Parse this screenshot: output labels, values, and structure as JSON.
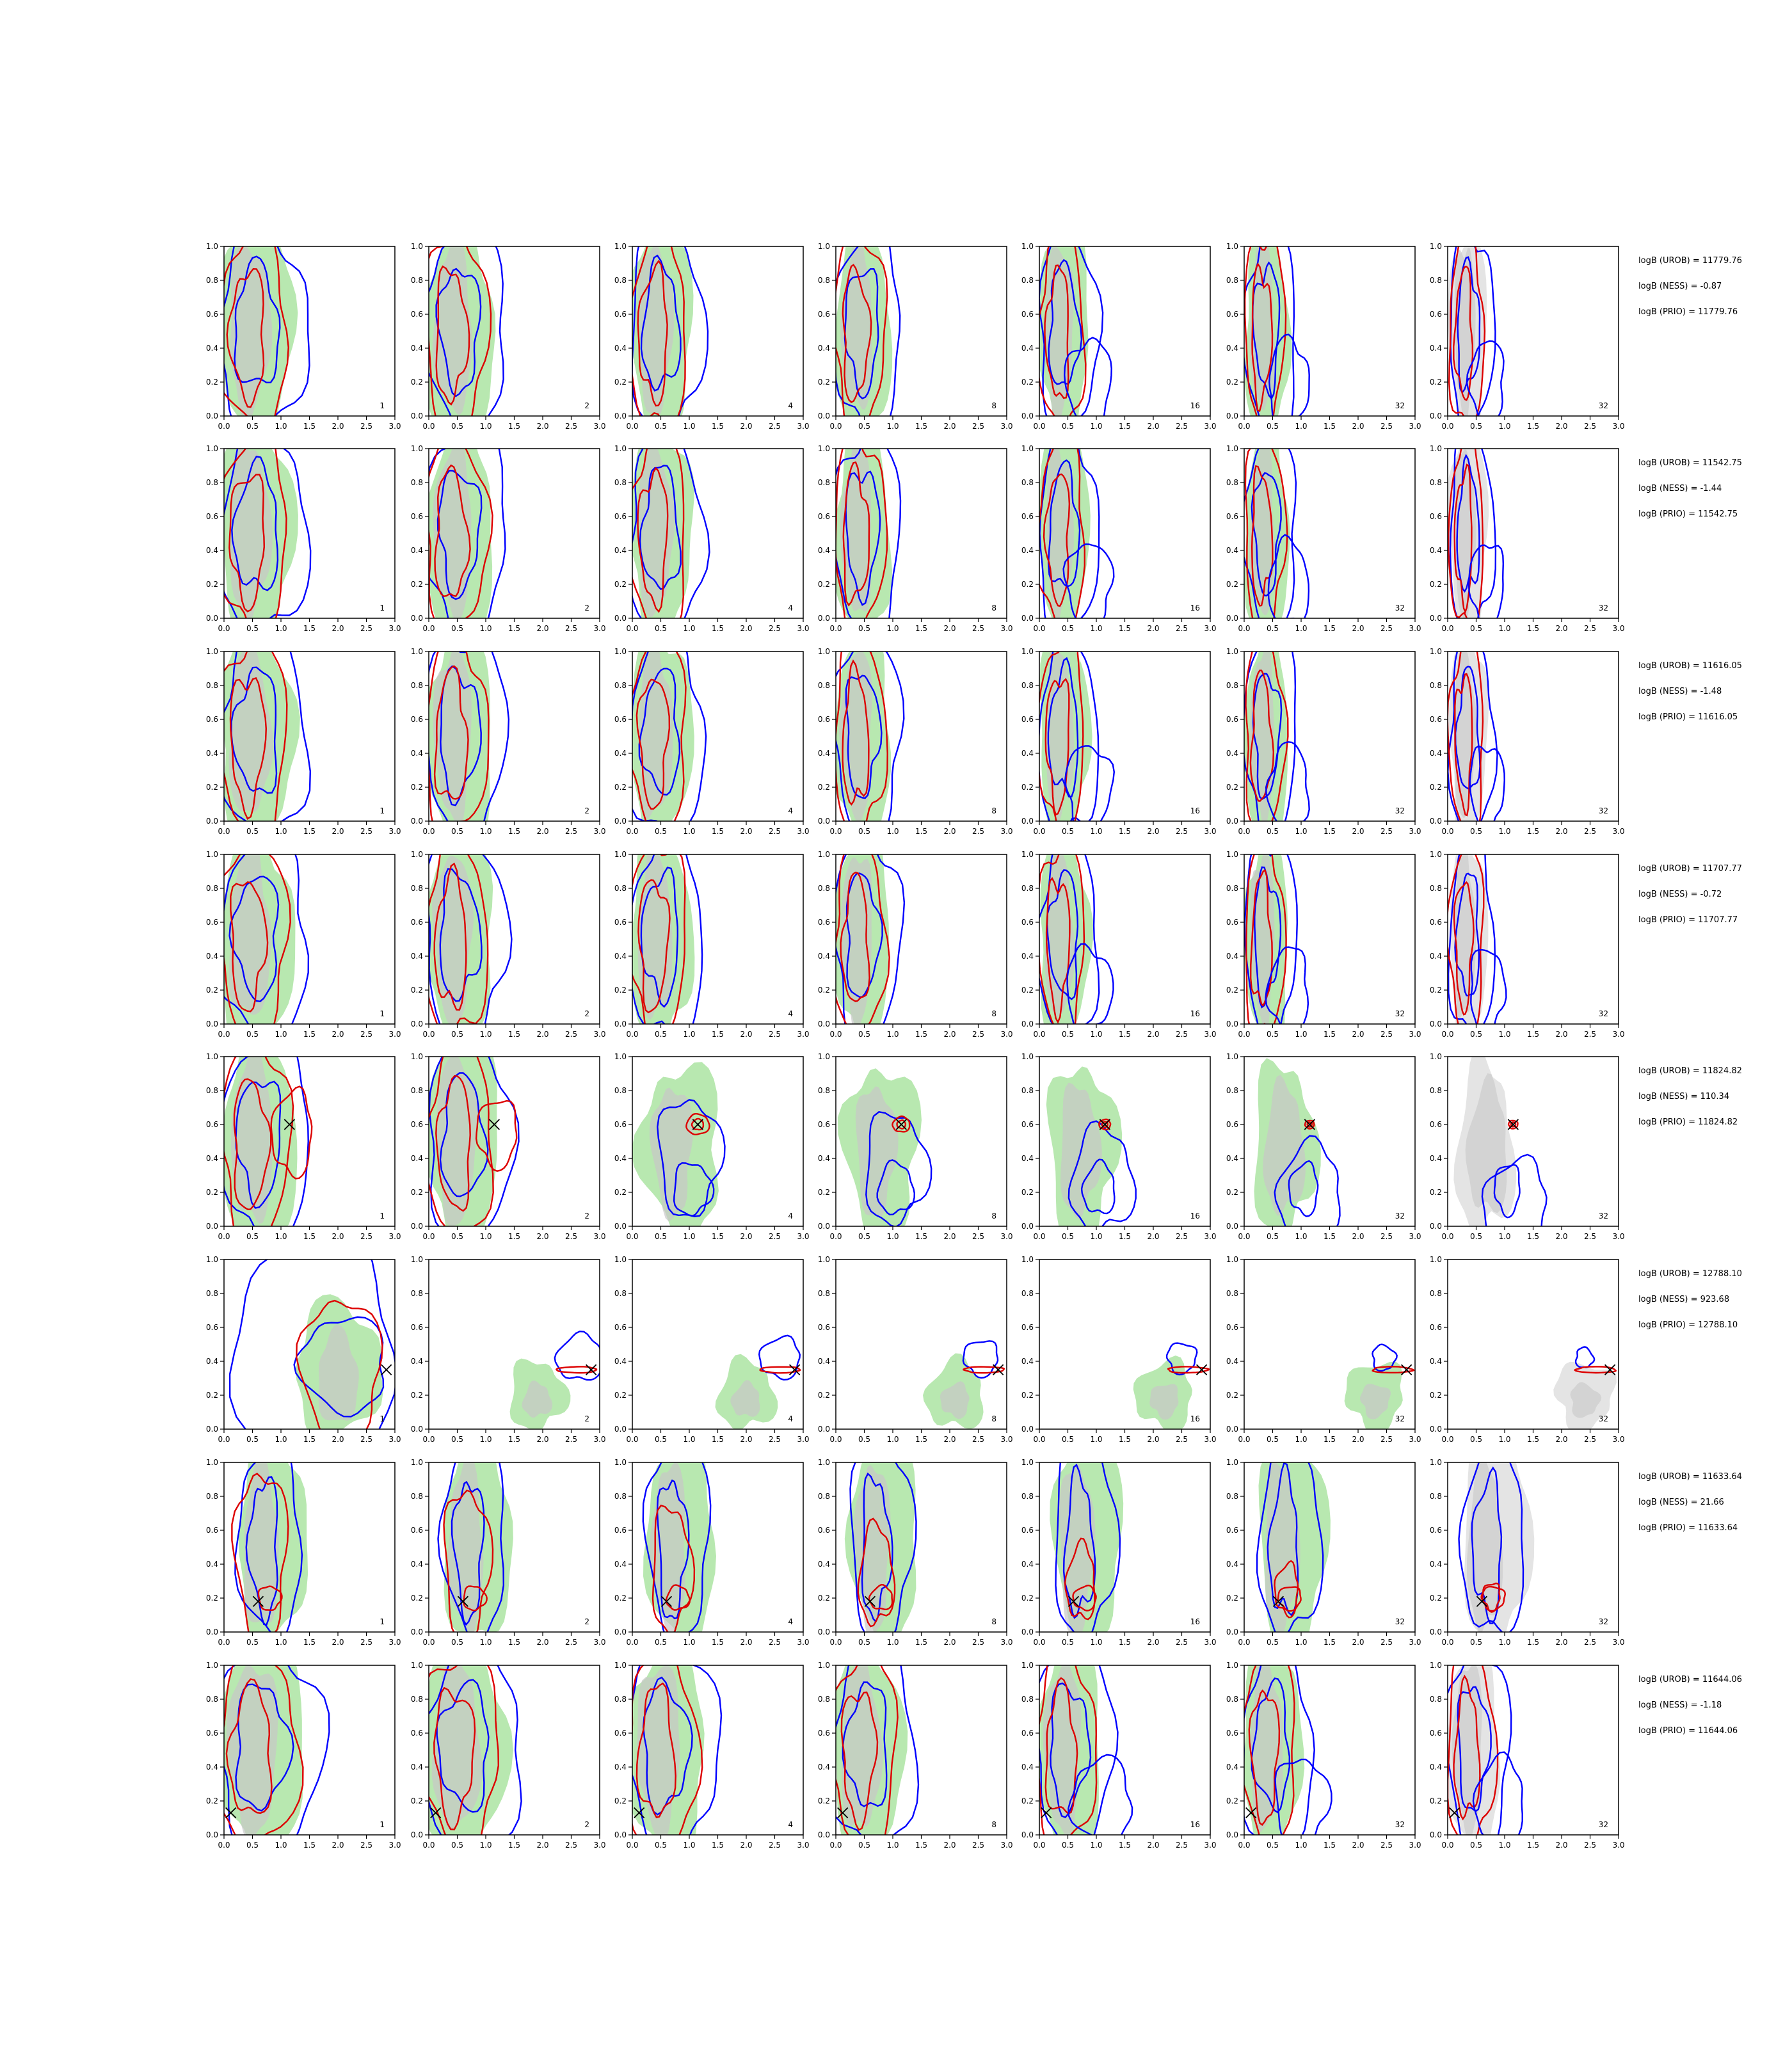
{
  "figure": {
    "colors": {
      "prior_fill": "#b8e8b0",
      "prior_fill_inner": "#c8c8c8",
      "grey_fill": "#e4e4e4",
      "grey_fill_inner": "#cccccc",
      "contour_a": "#0000ff",
      "contour_b": "#dd0000",
      "marker": "#000000"
    }
  },
  "chart_data": {
    "type": "grid of 2D contour density panels",
    "x_axis": {
      "range": [
        0.0,
        3.0
      ],
      "ticks": [
        "0.0",
        "0.5",
        "1.0",
        "1.5",
        "2.0",
        "2.5",
        "3.0"
      ]
    },
    "y_axis": {
      "range": [
        0.0,
        1.0
      ],
      "ticks": [
        "0.0",
        "0.2",
        "0.4",
        "0.6",
        "0.8",
        "1.0"
      ]
    },
    "panel_labels": [
      "1",
      "2",
      "4",
      "8",
      "16",
      "32",
      "32"
    ],
    "rows": [
      {
        "truth": null,
        "annotations": [
          "logB (UROB) = 11779.76",
          "logB (NESS) = -0.87",
          "logB (PRIO) = 11779.76"
        ]
      },
      {
        "truth": null,
        "annotations": [
          "logB (UROB) = 11542.75",
          "logB (NESS) = -1.44",
          "logB (PRIO) = 11542.75"
        ]
      },
      {
        "truth": null,
        "annotations": [
          "logB (UROB) = 11616.05",
          "logB (NESS) = -1.48",
          "logB (PRIO) = 11616.05"
        ]
      },
      {
        "truth": null,
        "annotations": [
          "logB (UROB) = 11707.77",
          "logB (NESS) = -0.72",
          "logB (PRIO) = 11707.77"
        ]
      },
      {
        "truth": [
          1.15,
          0.6
        ],
        "annotations": [
          "logB (UROB) = 11824.82",
          "logB (NESS) = 110.34",
          "logB (PRIO) = 11824.82"
        ]
      },
      {
        "truth": [
          2.85,
          0.35
        ],
        "annotations": [
          "logB (UROB) = 12788.10",
          "logB (NESS) = 923.68",
          "logB (PRIO) = 12788.10"
        ]
      },
      {
        "truth": [
          0.6,
          0.18
        ],
        "annotations": [
          "logB (UROB) = 11633.64",
          "logB (NESS) = 21.66",
          "logB (PRIO) = 11633.64"
        ]
      },
      {
        "truth": [
          0.12,
          0.13
        ],
        "annotations": [
          "logB (UROB) = 11644.06",
          "logB (NESS) = -1.18",
          "logB (PRIO) = 11644.06"
        ]
      }
    ]
  }
}
